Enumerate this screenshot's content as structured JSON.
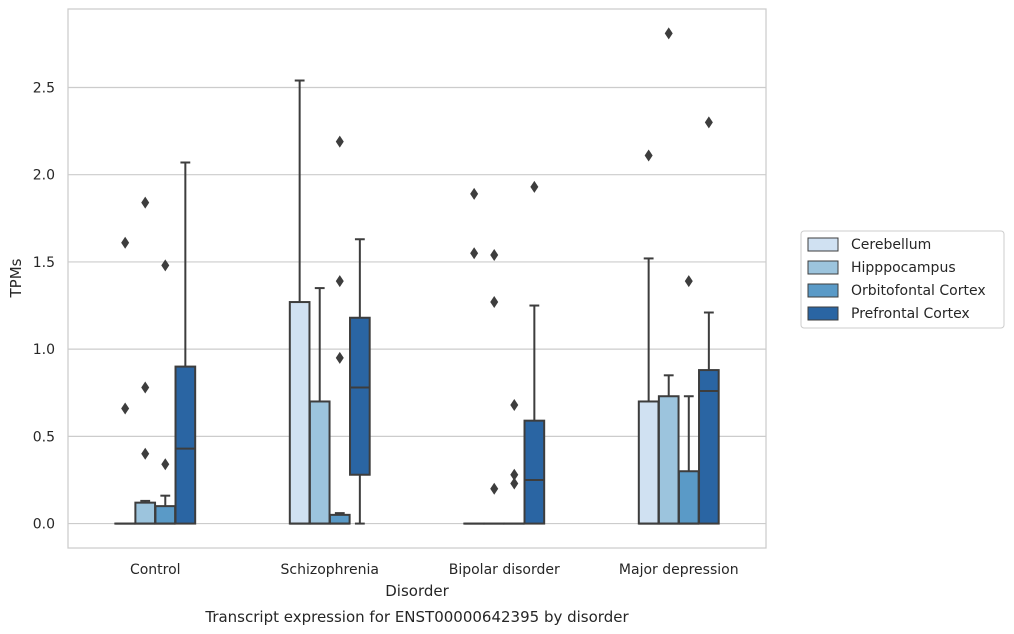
{
  "chart_data": {
    "type": "box",
    "caption": "Transcript expression for ENST00000642395 by disorder",
    "xlabel": "Disorder",
    "ylabel": "TPMs",
    "ylim": [
      -0.14,
      2.95
    ],
    "yticks": [
      0.0,
      0.5,
      1.0,
      1.5,
      2.0,
      2.5
    ],
    "ytick_labels": [
      "0.0",
      "0.5",
      "1.0",
      "1.5",
      "2.0",
      "2.5"
    ],
    "grid": "horizontal",
    "legend_position": "right",
    "categories": [
      "Control",
      "Schizophrenia",
      "Bipolar disorder",
      "Major depression"
    ],
    "series": [
      {
        "name": "Cerebellum",
        "color": "#d0e1f2",
        "boxes": [
          {
            "q1": 0,
            "median": 0,
            "q3": 0,
            "whisker_low": 0,
            "whisker_high": 0,
            "outliers": [
              1.61,
              0.66
            ]
          },
          {
            "q1": 0,
            "median": 0,
            "q3": 1.27,
            "whisker_low": 0,
            "whisker_high": 2.54,
            "outliers": []
          },
          {
            "q1": 0,
            "median": 0,
            "q3": 0,
            "whisker_low": 0,
            "whisker_high": 0,
            "outliers": [
              1.89,
              1.55
            ]
          },
          {
            "q1": 0,
            "median": 0,
            "q3": 0.7,
            "whisker_low": 0,
            "whisker_high": 1.52,
            "outliers": [
              2.11
            ]
          }
        ]
      },
      {
        "name": "Hipppocampus",
        "color": "#9cc4dd",
        "boxes": [
          {
            "q1": 0,
            "median": 0,
            "q3": 0.12,
            "whisker_low": 0,
            "whisker_high": 0.13,
            "outliers": [
              1.84,
              0.78,
              0.4
            ]
          },
          {
            "q1": 0,
            "median": 0,
            "q3": 0.7,
            "whisker_low": 0,
            "whisker_high": 1.35,
            "outliers": []
          },
          {
            "q1": 0,
            "median": 0,
            "q3": 0,
            "whisker_low": 0,
            "whisker_high": 0,
            "outliers": [
              1.54,
              1.27,
              0.2
            ]
          },
          {
            "q1": 0,
            "median": 0,
            "q3": 0.73,
            "whisker_low": 0,
            "whisker_high": 0.85,
            "outliers": [
              2.81
            ]
          }
        ]
      },
      {
        "name": "Orbitofontal Cortex",
        "color": "#5a9ac7",
        "boxes": [
          {
            "q1": 0,
            "median": 0,
            "q3": 0.1,
            "whisker_low": 0,
            "whisker_high": 0.16,
            "outliers": [
              1.48,
              0.34
            ]
          },
          {
            "q1": 0,
            "median": 0,
            "q3": 0.05,
            "whisker_low": 0,
            "whisker_high": 0.06,
            "outliers": [
              2.19,
              1.39,
              0.95
            ]
          },
          {
            "q1": 0,
            "median": 0,
            "q3": 0,
            "whisker_low": 0,
            "whisker_high": 0,
            "outliers": [
              0.68,
              0.28,
              0.23
            ]
          },
          {
            "q1": 0,
            "median": 0,
            "q3": 0.3,
            "whisker_low": 0,
            "whisker_high": 0.73,
            "outliers": [
              1.39
            ]
          }
        ]
      },
      {
        "name": "Prefrontal Cortex",
        "color": "#2a65a3",
        "boxes": [
          {
            "q1": 0,
            "median": 0.43,
            "q3": 0.9,
            "whisker_low": 0,
            "whisker_high": 2.07,
            "outliers": []
          },
          {
            "q1": 0.28,
            "median": 0.78,
            "q3": 1.18,
            "whisker_low": 0,
            "whisker_high": 1.63,
            "outliers": []
          },
          {
            "q1": 0,
            "median": 0.25,
            "q3": 0.59,
            "whisker_low": 0,
            "whisker_high": 1.25,
            "outliers": [
              1.93
            ]
          },
          {
            "q1": 0,
            "median": 0.76,
            "q3": 0.88,
            "whisker_low": 0,
            "whisker_high": 1.21,
            "outliers": [
              2.3
            ]
          }
        ]
      }
    ]
  }
}
